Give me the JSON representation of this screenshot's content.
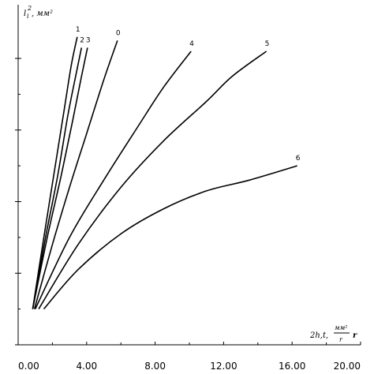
{
  "chart_data": {
    "type": "line",
    "x_ticks": [
      "0.00",
      "4.00",
      "8.00",
      "12.00",
      "16.00",
      "20.00"
    ],
    "x_tick_values": [
      0,
      4,
      8,
      12,
      16,
      20
    ],
    "xlim": [
      0,
      20
    ],
    "ylim": [
      0,
      4.75
    ],
    "y_tick_values": [
      0,
      1,
      2,
      3,
      4
    ],
    "xlabel": {
      "main": "2h,t,",
      "num": "мм²",
      "den": "r",
      "tail": "r"
    },
    "ylabel": {
      "main": "l",
      "sub": "i",
      "sup": "2",
      "unit": ", мм²"
    },
    "series": [
      {
        "name": "1",
        "x": [
          0.85,
          1.5,
          2.1,
          2.7,
          3.1,
          3.45
        ],
        "y": [
          0.5,
          1.5,
          2.4,
          3.3,
          3.9,
          4.3
        ]
      },
      {
        "name": "2",
        "x": [
          0.85,
          1.6,
          2.3,
          2.9,
          3.4,
          3.7
        ],
        "y": [
          0.5,
          1.5,
          2.35,
          3.2,
          3.8,
          4.15
        ]
      },
      {
        "name": "3",
        "x": [
          0.85,
          1.7,
          2.5,
          3.2,
          3.7,
          4.05
        ],
        "y": [
          0.5,
          1.5,
          2.35,
          3.15,
          3.75,
          4.15
        ]
      },
      {
        "name": "0",
        "x": [
          0.95,
          2.0,
          3.0,
          4.0,
          5.0,
          5.8
        ],
        "y": [
          0.5,
          1.4,
          2.2,
          2.95,
          3.7,
          4.25
        ]
      },
      {
        "name": "4",
        "x": [
          1.0,
          3.0,
          5.0,
          7.0,
          8.5,
          10.1
        ],
        "y": [
          0.5,
          1.5,
          2.3,
          3.05,
          3.6,
          4.1
        ]
      },
      {
        "name": "5",
        "x": [
          1.2,
          3.5,
          6.0,
          8.5,
          11.0,
          12.5,
          14.5
        ],
        "y": [
          0.5,
          1.4,
          2.2,
          2.85,
          3.4,
          3.75,
          4.1
        ]
      },
      {
        "name": "6",
        "x": [
          1.5,
          3.5,
          6.0,
          8.5,
          11.0,
          13.5,
          16.3
        ],
        "y": [
          0.5,
          1.05,
          1.55,
          1.9,
          2.15,
          2.3,
          2.5
        ]
      }
    ],
    "grid": false,
    "legend": "none"
  }
}
